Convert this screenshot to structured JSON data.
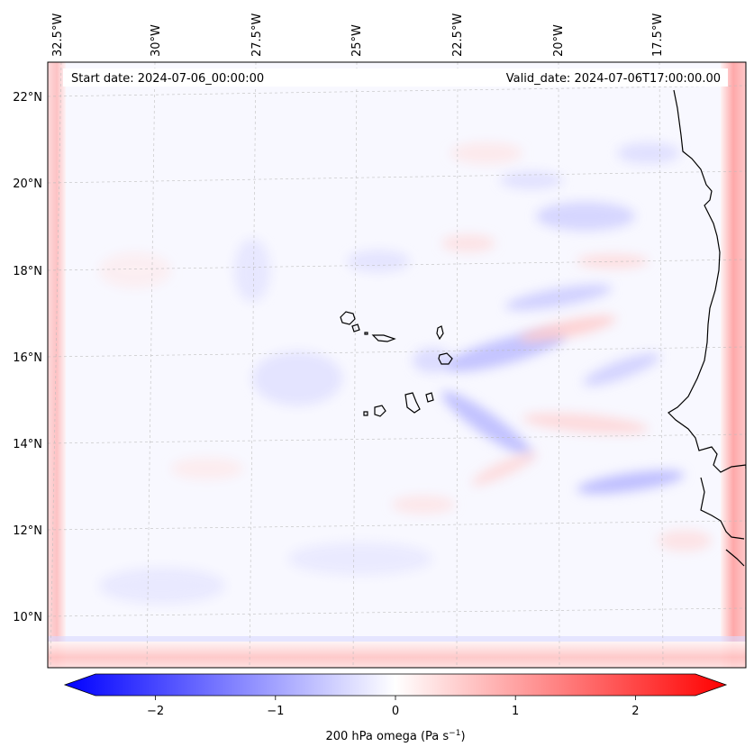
{
  "header": {
    "start_date": "Start date: 2024-07-06_00:00:00",
    "valid_date": "Valid_date: 2024-07-06T17:00:00.00"
  },
  "lon_labels": [
    "32.5°W",
    "30°W",
    "27.5°W",
    "25°W",
    "22.5°W",
    "20°W",
    "17.5°W"
  ],
  "lat_labels": [
    "22°N",
    "20°N",
    "18°N",
    "16°N",
    "14°N",
    "12°N",
    "10°N"
  ],
  "colorbar": {
    "label_text": "200 hPa omega (Pa s",
    "label_sup": "−1",
    "label_close": ")",
    "range": [
      -2.6,
      2.6
    ],
    "ticks": [
      -2,
      -1,
      0,
      1,
      2
    ],
    "tick_labels": [
      "−2",
      "−1",
      "0",
      "1",
      "2"
    ],
    "colors": {
      "negative": "#0000ff",
      "zero": "#ffffff",
      "positive": "#ff0000"
    }
  },
  "map_colors": {
    "coastline": "#000000",
    "gridline": "#bbbbbb"
  }
}
